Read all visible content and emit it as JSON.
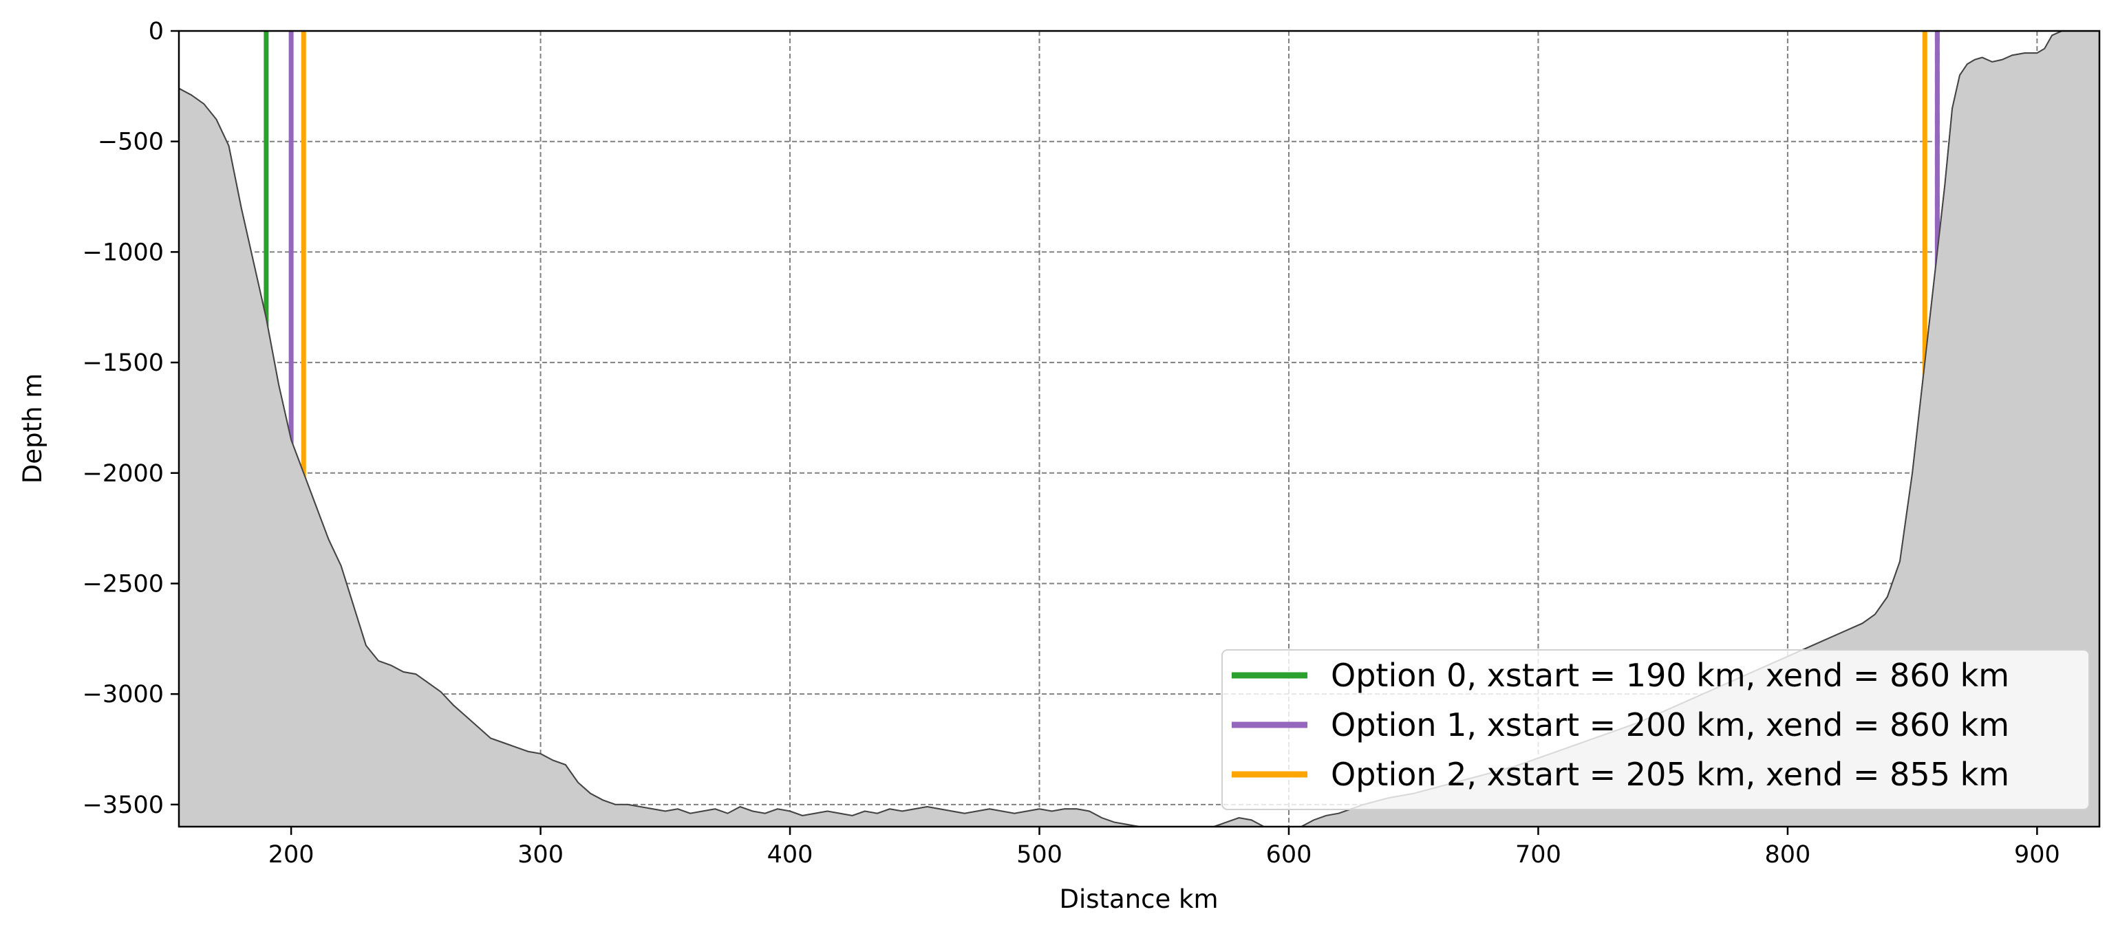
{
  "chart_data": {
    "type": "line",
    "title": "",
    "xlabel": "Distance km",
    "ylabel": "Depth m",
    "xlim": [
      155,
      925
    ],
    "ylim": [
      -3600,
      0
    ],
    "xticks": [
      200,
      300,
      400,
      500,
      600,
      700,
      800,
      900
    ],
    "yticks": [
      0,
      -500,
      -1000,
      -1500,
      -2000,
      -2500,
      -3000,
      -3500
    ],
    "xtick_labels": [
      "200",
      "300",
      "400",
      "500",
      "600",
      "700",
      "800",
      "900"
    ],
    "ytick_labels": [
      "0",
      "−500",
      "−1000",
      "−1500",
      "−2000",
      "−2500",
      "−3000",
      "−3500"
    ],
    "grid": true,
    "legend_position": "lower-right",
    "bathymetry": {
      "fill_color": "#cccccc",
      "line_color": "#444444",
      "x": [
        155,
        160,
        165,
        170,
        175,
        180,
        185,
        190,
        195,
        200,
        205,
        210,
        215,
        220,
        225,
        230,
        235,
        240,
        245,
        250,
        255,
        260,
        265,
        270,
        275,
        280,
        285,
        290,
        295,
        300,
        305,
        310,
        315,
        320,
        325,
        330,
        335,
        340,
        345,
        350,
        355,
        360,
        365,
        370,
        375,
        380,
        385,
        390,
        395,
        400,
        405,
        410,
        415,
        420,
        425,
        430,
        435,
        440,
        445,
        450,
        455,
        460,
        465,
        470,
        475,
        480,
        485,
        490,
        495,
        500,
        505,
        510,
        515,
        520,
        525,
        530,
        535,
        540,
        545,
        550,
        560,
        570,
        575,
        580,
        585,
        590,
        595,
        600,
        605,
        610,
        615,
        620,
        625,
        630,
        640,
        650,
        660,
        670,
        680,
        690,
        700,
        710,
        720,
        730,
        740,
        750,
        760,
        770,
        780,
        790,
        800,
        810,
        820,
        830,
        835,
        840,
        845,
        850,
        852,
        855,
        858,
        860,
        863,
        866,
        869,
        872,
        875,
        878,
        882,
        886,
        890,
        895,
        900,
        903,
        906,
        910,
        915,
        920,
        925
      ],
      "y": [
        -260,
        -290,
        -330,
        -400,
        -520,
        -800,
        -1050,
        -1300,
        -1600,
        -1850,
        -2000,
        -2150,
        -2300,
        -2420,
        -2600,
        -2780,
        -2850,
        -2870,
        -2900,
        -2910,
        -2950,
        -2990,
        -3050,
        -3100,
        -3150,
        -3200,
        -3220,
        -3240,
        -3260,
        -3270,
        -3300,
        -3320,
        -3400,
        -3450,
        -3480,
        -3500,
        -3500,
        -3510,
        -3520,
        -3530,
        -3520,
        -3540,
        -3530,
        -3520,
        -3540,
        -3510,
        -3530,
        -3540,
        -3520,
        -3530,
        -3550,
        -3540,
        -3530,
        -3540,
        -3550,
        -3530,
        -3540,
        -3520,
        -3530,
        -3520,
        -3510,
        -3520,
        -3530,
        -3540,
        -3530,
        -3520,
        -3530,
        -3540,
        -3530,
        -3520,
        -3530,
        -3520,
        -3520,
        -3530,
        -3560,
        -3580,
        -3590,
        -3600,
        -3600,
        -3600,
        -3600,
        -3600,
        -3580,
        -3560,
        -3570,
        -3600,
        -3610,
        -3620,
        -3600,
        -3570,
        -3550,
        -3540,
        -3520,
        -3500,
        -3470,
        -3450,
        -3420,
        -3390,
        -3360,
        -3330,
        -3290,
        -3250,
        -3210,
        -3170,
        -3130,
        -3080,
        -3030,
        -2980,
        -2930,
        -2880,
        -2830,
        -2780,
        -2730,
        -2680,
        -2640,
        -2560,
        -2400,
        -2000,
        -1800,
        -1500,
        -1200,
        -1000,
        -700,
        -350,
        -200,
        -150,
        -130,
        -120,
        -140,
        -130,
        -110,
        -100,
        -100,
        -80,
        -20,
        0,
        0,
        0,
        0
      ]
    },
    "series": [
      {
        "name": "Option 0, xstart = 190 km, xend = 860 km",
        "color": "#2ca02c",
        "xstart": 190,
        "xend": 860,
        "dashed_end": true
      },
      {
        "name": "Option 1, xstart = 200 km, xend = 860 km",
        "color": "#9467bd",
        "xstart": 200,
        "xend": 860,
        "dashed_end": false
      },
      {
        "name": "Option 2, xstart = 205 km, xend = 855 km",
        "color": "#ffa500",
        "xstart": 205,
        "xend": 855,
        "dashed_end": false
      }
    ]
  }
}
